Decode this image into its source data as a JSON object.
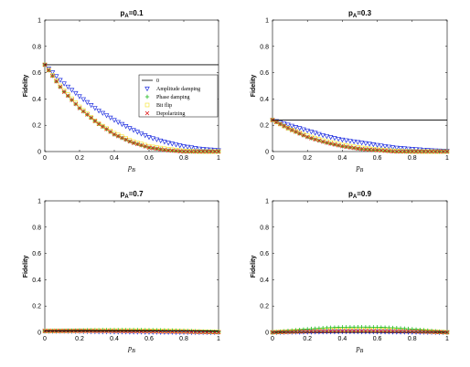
{
  "chart_data": [
    {
      "type": "line",
      "title": "p_A=0.1",
      "title_main": "p",
      "title_sub": "A",
      "title_rest": "=0.1",
      "xlabel": "p_B",
      "ylabel": "Fidelity",
      "xlim": [
        0,
        1
      ],
      "ylim": [
        0,
        1
      ],
      "xticks": [
        "0",
        "0.2",
        "0.4",
        "0.6",
        "0.8",
        "1"
      ],
      "yticks": [
        "0",
        "0.2",
        "0.4",
        "0.6",
        "0.8",
        "1"
      ],
      "x": [
        0,
        0.1,
        0.2,
        0.3,
        0.4,
        0.5,
        0.6,
        0.7,
        0.8,
        0.9,
        1.0
      ],
      "legend_placement": "right",
      "legend": [
        "0",
        "Amplitude damping",
        "Phase damping",
        "Bit flip",
        "Depolarizing"
      ],
      "series": [
        {
          "name": "0",
          "marker": "line",
          "color": "#000000",
          "values": [
            0.66,
            0.66,
            0.66,
            0.66,
            0.66,
            0.66,
            0.66,
            0.66,
            0.66,
            0.66,
            0.66
          ]
        },
        {
          "name": "Amplitude damping",
          "marker": "triangle-down",
          "color": "#1f2fe0",
          "values": [
            0.66,
            0.53,
            0.42,
            0.32,
            0.24,
            0.17,
            0.11,
            0.07,
            0.04,
            0.02,
            0.01
          ]
        },
        {
          "name": "Phase damping",
          "marker": "plus",
          "color": "#22bb22",
          "values": [
            0.66,
            0.47,
            0.33,
            0.22,
            0.13,
            0.07,
            0.03,
            0.01,
            0.0,
            0.0,
            0.0
          ]
        },
        {
          "name": "Bit flip",
          "marker": "square",
          "color": "#f6e642",
          "values": [
            0.66,
            0.48,
            0.34,
            0.22,
            0.14,
            0.08,
            0.04,
            0.02,
            0.005,
            0.0,
            0.0
          ]
        },
        {
          "name": "Depolarizing",
          "marker": "x",
          "color": "#e01b1b",
          "values": [
            0.66,
            0.47,
            0.33,
            0.22,
            0.13,
            0.07,
            0.03,
            0.01,
            0.0,
            0.0,
            0.0
          ]
        }
      ]
    },
    {
      "type": "line",
      "title": "p_A=0.3",
      "title_main": "p",
      "title_sub": "A",
      "title_rest": "=0.3",
      "xlabel": "p_B",
      "ylabel": "Fidelity",
      "xlim": [
        0,
        1
      ],
      "ylim": [
        0,
        1
      ],
      "xticks": [
        "0",
        "0.2",
        "0.4",
        "0.6",
        "0.8",
        "1"
      ],
      "yticks": [
        "0",
        "0.2",
        "0.4",
        "0.6",
        "0.8",
        "1"
      ],
      "x": [
        0,
        0.1,
        0.2,
        0.3,
        0.4,
        0.5,
        0.6,
        0.7,
        0.8,
        0.9,
        1.0
      ],
      "series": [
        {
          "name": "0",
          "marker": "line",
          "color": "#000000",
          "values": [
            0.24,
            0.24,
            0.24,
            0.24,
            0.24,
            0.24,
            0.24,
            0.24,
            0.24,
            0.24,
            0.24
          ]
        },
        {
          "name": "Amplitude damping",
          "marker": "triangle-down",
          "color": "#1f2fe0",
          "values": [
            0.24,
            0.2,
            0.16,
            0.12,
            0.09,
            0.07,
            0.05,
            0.03,
            0.02,
            0.01,
            0.005
          ]
        },
        {
          "name": "Phase damping",
          "marker": "plus",
          "color": "#22bb22",
          "values": [
            0.24,
            0.17,
            0.11,
            0.07,
            0.04,
            0.02,
            0.01,
            0.0,
            0.0,
            0.0,
            0.0
          ]
        },
        {
          "name": "Bit flip",
          "marker": "square",
          "color": "#f6e642",
          "values": [
            0.24,
            0.17,
            0.12,
            0.08,
            0.05,
            0.03,
            0.015,
            0.005,
            0.0,
            0.0,
            0.0
          ]
        },
        {
          "name": "Depolarizing",
          "marker": "x",
          "color": "#e01b1b",
          "values": [
            0.24,
            0.17,
            0.11,
            0.07,
            0.04,
            0.02,
            0.01,
            0.0,
            0.0,
            0.0,
            0.0
          ]
        }
      ]
    },
    {
      "type": "line",
      "title": "p_A=0.7",
      "title_main": "p",
      "title_sub": "A",
      "title_rest": "=0.7",
      "xlabel": "p_B",
      "ylabel": "Fidelity",
      "xlim": [
        0,
        1
      ],
      "ylim": [
        0,
        1
      ],
      "xticks": [
        "0",
        "0.2",
        "0.4",
        "0.6",
        "0.8",
        "1"
      ],
      "yticks": [
        "0",
        "0.2",
        "0.4",
        "0.6",
        "0.8",
        "1"
      ],
      "x": [
        0,
        0.1,
        0.2,
        0.3,
        0.4,
        0.5,
        0.6,
        0.7,
        0.8,
        0.9,
        1.0
      ],
      "series": [
        {
          "name": "0",
          "marker": "line",
          "color": "#000000",
          "values": [
            0.01,
            0.01,
            0.01,
            0.01,
            0.01,
            0.01,
            0.01,
            0.01,
            0.01,
            0.01,
            0.01
          ]
        },
        {
          "name": "Amplitude damping",
          "marker": "triangle-down",
          "color": "#1f2fe0",
          "values": [
            0.01,
            0.01,
            0.008,
            0.006,
            0.005,
            0.004,
            0.003,
            0.002,
            0.001,
            0.0,
            0.0
          ]
        },
        {
          "name": "Phase damping",
          "marker": "plus",
          "color": "#22bb22",
          "values": [
            0.01,
            0.012,
            0.015,
            0.017,
            0.018,
            0.018,
            0.017,
            0.015,
            0.012,
            0.008,
            0.004
          ]
        },
        {
          "name": "Bit flip",
          "marker": "square",
          "color": "#f6e642",
          "values": [
            0.01,
            0.011,
            0.012,
            0.013,
            0.013,
            0.013,
            0.012,
            0.01,
            0.008,
            0.005,
            0.002
          ]
        },
        {
          "name": "Depolarizing",
          "marker": "x",
          "color": "#e01b1b",
          "values": [
            0.01,
            0.01,
            0.01,
            0.01,
            0.009,
            0.008,
            0.007,
            0.005,
            0.004,
            0.002,
            0.0
          ]
        }
      ]
    },
    {
      "type": "line",
      "title": "p_A=0.9",
      "title_main": "p",
      "title_sub": "A",
      "title_rest": "=0.9",
      "xlabel": "p_B",
      "ylabel": "Fidelity",
      "xlim": [
        0,
        1
      ],
      "ylim": [
        0,
        1
      ],
      "xticks": [
        "0",
        "0.2",
        "0.4",
        "0.6",
        "0.8",
        "1"
      ],
      "yticks": [
        "0",
        "0.2",
        "0.4",
        "0.6",
        "0.8",
        "1"
      ],
      "x": [
        0,
        0.1,
        0.2,
        0.3,
        0.4,
        0.5,
        0.6,
        0.7,
        0.8,
        0.9,
        1.0
      ],
      "series": [
        {
          "name": "0",
          "marker": "line",
          "color": "#000000",
          "values": [
            0.0,
            0.0,
            0.0,
            0.0,
            0.0,
            0.0,
            0.0,
            0.0,
            0.0,
            0.0,
            0.0
          ]
        },
        {
          "name": "Amplitude damping",
          "marker": "triangle-down",
          "color": "#1f2fe0",
          "values": [
            0.0,
            0.002,
            0.004,
            0.005,
            0.006,
            0.006,
            0.005,
            0.004,
            0.003,
            0.001,
            0.0
          ]
        },
        {
          "name": "Phase damping",
          "marker": "plus",
          "color": "#22bb22",
          "values": [
            0.0,
            0.013,
            0.025,
            0.034,
            0.039,
            0.04,
            0.039,
            0.034,
            0.025,
            0.013,
            0.0
          ]
        },
        {
          "name": "Bit flip",
          "marker": "square",
          "color": "#f6e642",
          "values": [
            0.0,
            0.006,
            0.012,
            0.016,
            0.018,
            0.019,
            0.018,
            0.016,
            0.012,
            0.006,
            0.0
          ]
        },
        {
          "name": "Depolarizing",
          "marker": "x",
          "color": "#e01b1b",
          "values": [
            0.0,
            0.003,
            0.006,
            0.008,
            0.009,
            0.01,
            0.009,
            0.008,
            0.006,
            0.003,
            0.0
          ]
        }
      ]
    }
  ]
}
